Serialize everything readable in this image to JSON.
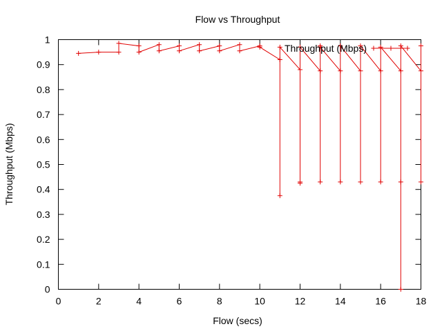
{
  "chart_data": {
    "type": "line",
    "title": "Flow vs Throughput",
    "xlabel": "Flow (secs)",
    "ylabel": "Throughput (Mbps)",
    "xlim": [
      0,
      18
    ],
    "ylim": [
      0,
      1
    ],
    "x_ticks": [
      "0",
      "2",
      "4",
      "6",
      "8",
      "10",
      "12",
      "14",
      "16",
      "18"
    ],
    "y_ticks": [
      "0",
      "0.1",
      "0.2",
      "0.3",
      "0.4",
      "0.5",
      "0.6",
      "0.7",
      "0.8",
      "0.9",
      "1"
    ],
    "grid": false,
    "legend_position": "top-right",
    "series": [
      {
        "name": "Throughput (Mbps)",
        "color": "#e00000",
        "marker": "plus",
        "x": [
          1,
          2,
          3,
          3,
          4,
          4,
          5,
          5,
          6,
          6,
          7,
          7,
          8,
          8,
          9,
          9,
          10,
          10,
          11,
          11,
          11,
          12,
          12,
          12,
          12,
          13,
          13,
          13,
          13,
          14,
          14,
          14,
          15,
          15,
          15,
          16,
          16,
          16,
          17,
          17,
          17,
          17,
          18,
          18,
          18
        ],
        "y": [
          0.945,
          0.95,
          0.95,
          0.985,
          0.975,
          0.95,
          0.98,
          0.955,
          0.975,
          0.955,
          0.98,
          0.955,
          0.975,
          0.955,
          0.98,
          0.955,
          0.975,
          0.97,
          0.92,
          0.375,
          0.97,
          0.88,
          0.425,
          0.43,
          0.97,
          0.875,
          0.43,
          0.975,
          0.97,
          0.875,
          0.43,
          0.975,
          0.875,
          0.43,
          0.975,
          0.875,
          0.43,
          0.97,
          0.875,
          0.43,
          0.0,
          0.975,
          0.875,
          0.43,
          0.975
        ]
      }
    ]
  }
}
